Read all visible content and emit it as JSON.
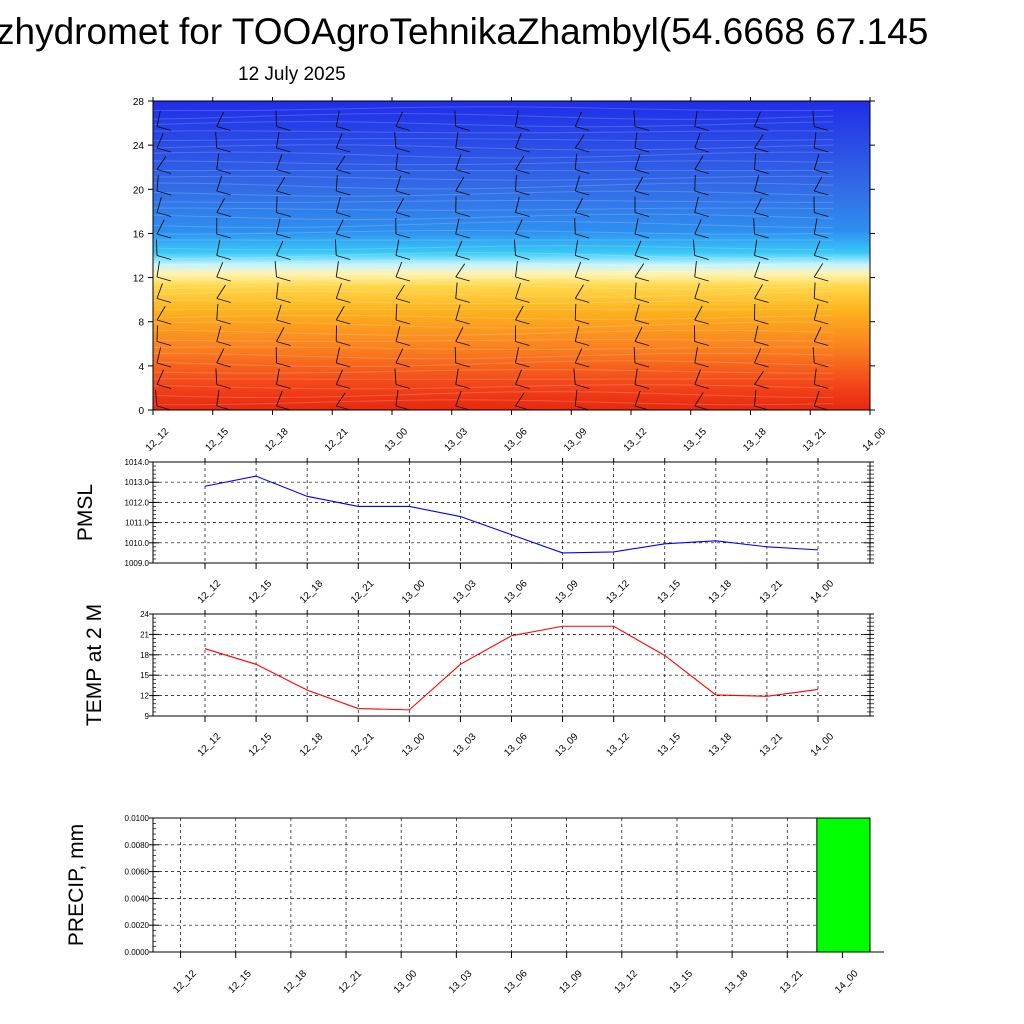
{
  "title": "zhydromet for TOOAgroTehnikaZhambyl(54.6668 67.145",
  "subtitle": "12 July 2025",
  "chart_data": [
    {
      "type": "heatmap",
      "title": "",
      "x_ticks": [
        "12_12",
        "12_15",
        "12_18",
        "12_21",
        "13_00",
        "13_03",
        "13_06",
        "13_09",
        "13_12",
        "13_15",
        "13_18",
        "13_21",
        "14_00"
      ],
      "y_ticks": [
        0,
        4,
        8,
        12,
        16,
        20,
        24,
        28
      ],
      "ylim": [
        0,
        28
      ],
      "description_colors": {
        "low": "#e8280f",
        "mid": "#ffe26a",
        "high": "#2233e6"
      },
      "overlay": "wind barbs"
    },
    {
      "type": "line",
      "ylabel": "PMSL",
      "x": [
        "12_12",
        "12_15",
        "12_18",
        "12_21",
        "13_00",
        "13_03",
        "13_06",
        "13_09",
        "13_12",
        "13_15",
        "13_18",
        "13_21",
        "14_00"
      ],
      "series": [
        {
          "values": [
            1012.8,
            1013.3,
            1012.3,
            1011.8,
            1011.8,
            1011.3,
            1010.4,
            1009.5,
            1009.55,
            1009.95,
            1010.1,
            1009.8,
            1009.65
          ],
          "color": "#0000ff"
        }
      ],
      "ylim": [
        1009.0,
        1014.0
      ],
      "y_ticks": [
        "1009.0",
        "1010.0",
        "1011.0",
        "1012.0",
        "1013.0",
        "1014.0"
      ],
      "grid": true
    },
    {
      "type": "line",
      "ylabel": "TEMP at 2 M",
      "x": [
        "12_12",
        "12_15",
        "12_18",
        "12_21",
        "13_00",
        "13_03",
        "13_06",
        "13_09",
        "13_12",
        "13_15",
        "13_18",
        "13_21",
        "14_00"
      ],
      "series": [
        {
          "values": [
            18.9,
            16.6,
            12.8,
            10.1,
            9.9,
            16.6,
            20.8,
            22.2,
            22.2,
            17.9,
            12.1,
            11.9,
            12.9
          ],
          "color": "#ff0000"
        }
      ],
      "ylim": [
        9,
        24
      ],
      "y_ticks": [
        "9",
        "12",
        "15",
        "18",
        "21",
        "24"
      ],
      "grid": true
    },
    {
      "type": "bar",
      "ylabel": "PRECIP, mm",
      "categories": [
        "12_12",
        "12_15",
        "12_18",
        "12_21",
        "13_00",
        "13_03",
        "13_06",
        "13_09",
        "13_12",
        "13_15",
        "13_18",
        "13_21",
        "14_00"
      ],
      "values": [
        0,
        0,
        0,
        0,
        0,
        0,
        0,
        0,
        0,
        0,
        0,
        0,
        0.01
      ],
      "color": "#00ff00",
      "ylim": [
        0,
        0.01
      ],
      "y_ticks": [
        "0.0000",
        "0.0020",
        "0.0040",
        "0.0060",
        "0.0080",
        "0.0100"
      ],
      "grid": true
    }
  ]
}
